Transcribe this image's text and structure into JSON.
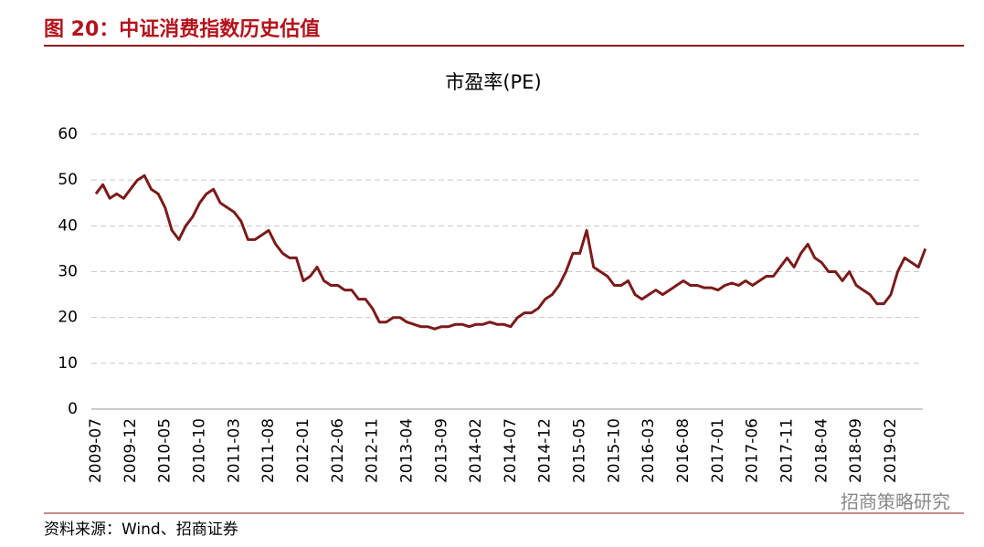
{
  "figure_title": "图 20：中证消费指数历史估值",
  "source": "资料来源：Wind、招商证券",
  "watermark": "招商策略研究",
  "chart_data": {
    "type": "line",
    "title": "市盈率(PE)",
    "categories": [
      "2009-07",
      null,
      null,
      null,
      null,
      "2009-12",
      null,
      null,
      null,
      null,
      "2010-05",
      null,
      null,
      null,
      null,
      "2010-10",
      null,
      null,
      null,
      null,
      "2011-03",
      null,
      null,
      null,
      null,
      "2011-08",
      null,
      null,
      null,
      null,
      "2012-01",
      null,
      null,
      null,
      null,
      "2012-06",
      null,
      null,
      null,
      null,
      "2012-11",
      null,
      null,
      null,
      null,
      "2013-04",
      null,
      null,
      null,
      null,
      "2013-09",
      null,
      null,
      null,
      null,
      "2014-02",
      null,
      null,
      null,
      null,
      "2014-07",
      null,
      null,
      null,
      null,
      "2014-12",
      null,
      null,
      null,
      null,
      "2015-05",
      null,
      null,
      null,
      null,
      "2015-10",
      null,
      null,
      null,
      null,
      "2016-03",
      null,
      null,
      null,
      null,
      "2016-08",
      null,
      null,
      null,
      null,
      "2017-01",
      null,
      null,
      null,
      null,
      "2017-06",
      null,
      null,
      null,
      null,
      "2017-11",
      null,
      null,
      null,
      null,
      "2018-04",
      null,
      null,
      null,
      null,
      "2018-09",
      null,
      null,
      null,
      null,
      "2019-02",
      null,
      null,
      null,
      null,
      null
    ],
    "values": [
      47,
      49,
      46,
      47,
      46,
      48,
      50,
      51,
      48,
      47,
      44,
      39,
      37,
      40,
      42,
      45,
      47,
      48,
      45,
      44,
      43,
      41,
      37,
      37,
      38,
      39,
      36,
      34,
      33,
      33,
      28,
      29,
      31,
      28,
      27,
      27,
      26,
      26,
      24,
      24,
      22,
      19,
      19,
      20,
      20,
      19,
      18.5,
      18,
      18,
      17.5,
      18,
      18,
      18.5,
      18.5,
      18,
      18.5,
      18.5,
      19,
      18.5,
      18.5,
      18,
      20,
      21,
      21,
      22,
      24,
      25,
      27,
      30,
      34,
      34,
      39,
      31,
      30,
      29,
      27,
      27,
      28,
      25,
      24,
      25,
      26,
      25,
      26,
      27,
      28,
      27,
      27,
      26.5,
      26.5,
      26,
      27,
      27.5,
      27,
      28,
      27,
      28,
      29,
      29,
      31,
      33,
      31,
      34,
      36,
      33,
      32,
      30,
      30,
      28,
      30,
      27,
      26,
      25,
      23,
      23,
      25,
      30,
      33,
      32,
      31,
      35
    ],
    "color": "#7b1a1a",
    "ylim": [
      0,
      60
    ],
    "yticks": [
      0,
      10,
      20,
      30,
      40,
      50,
      60
    ],
    "grid": true
  }
}
